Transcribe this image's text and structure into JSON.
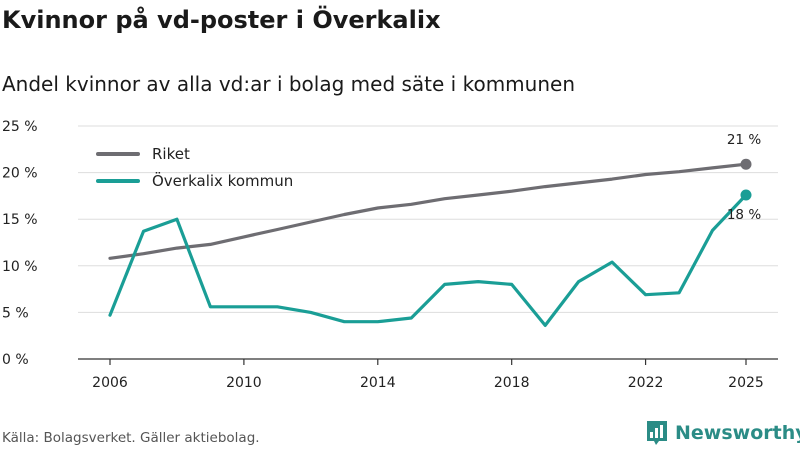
{
  "header": {
    "title": "Kvinnor på vd-poster i Överkalix",
    "subtitle": "Andel kvinnor av alla vd:ar i bolag med säte i kommunen"
  },
  "footer": {
    "source": "Källa: Bolagsverket. Gäller aktiebolag.",
    "brand": "Newsworthy"
  },
  "colors": {
    "riket": "#6e6d72",
    "kommun": "#1a9e96",
    "grid": "#dddddd",
    "brand": "#2b8c86"
  },
  "chart_data": {
    "type": "line",
    "title": "Kvinnor på vd-poster i Överkalix",
    "subtitle": "Andel kvinnor av alla vd:ar i bolag med säte i kommunen",
    "xlabel": "",
    "ylabel": "",
    "xlim": [
      2006,
      2025
    ],
    "ylim": [
      0,
      25
    ],
    "x_ticks": [
      2006,
      2010,
      2014,
      2018,
      2022,
      2025
    ],
    "y_ticks": [
      0,
      5,
      10,
      15,
      20,
      25
    ],
    "y_tick_labels": [
      "0 %",
      "5 %",
      "10 %",
      "15 %",
      "20 %",
      "25 %"
    ],
    "legend_position": "top-left",
    "grid": true,
    "x": [
      2006,
      2007,
      2008,
      2009,
      2010,
      2011,
      2012,
      2013,
      2014,
      2015,
      2016,
      2017,
      2018,
      2019,
      2020,
      2021,
      2022,
      2023,
      2024,
      2025
    ],
    "series": [
      {
        "name": "Riket",
        "color": "#6e6d72",
        "end_label": "21 %",
        "values": [
          10.8,
          11.3,
          11.9,
          12.3,
          13.1,
          13.9,
          14.7,
          15.5,
          16.2,
          16.6,
          17.2,
          17.6,
          18.0,
          18.5,
          18.9,
          19.3,
          19.8,
          20.1,
          20.5,
          20.9
        ]
      },
      {
        "name": "Överkalix kommun",
        "color": "#1a9e96",
        "end_label": "18 %",
        "values": [
          4.7,
          13.7,
          15.0,
          5.6,
          5.6,
          5.6,
          5.0,
          4.0,
          4.0,
          4.4,
          8.0,
          8.3,
          8.0,
          3.6,
          8.3,
          10.4,
          6.9,
          7.1,
          13.8,
          17.6
        ]
      }
    ]
  }
}
